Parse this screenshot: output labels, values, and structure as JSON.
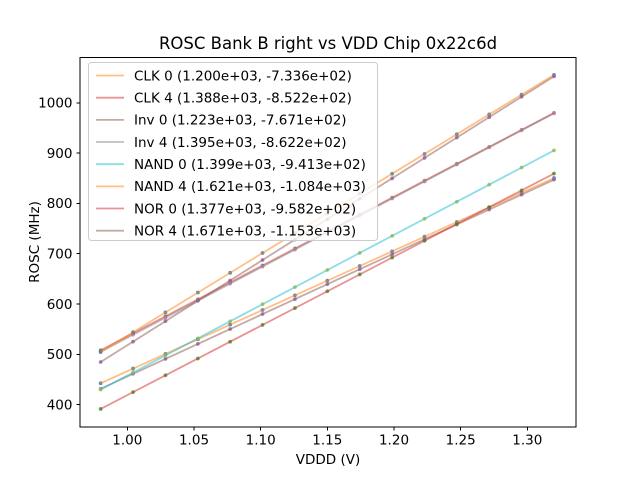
{
  "chart_data": {
    "type": "scatter",
    "fit": "linear (legend shows slope, intercept)",
    "title": "ROSC Bank B right vs VDD Chip 0x22c6d",
    "xlabel": "VDDD (V)",
    "ylabel": "ROSC (MHz)",
    "xlim": [
      0.9645,
      1.3365
    ],
    "ylim": [
      355,
      1090
    ],
    "grid": false,
    "legend_position": "upper left",
    "x_ticks": [
      1.0,
      1.05,
      1.1,
      1.15,
      1.2,
      1.25,
      1.3
    ],
    "x_tick_labels": [
      "1.00",
      "1.05",
      "1.10",
      "1.15",
      "1.20",
      "1.25",
      "1.30"
    ],
    "y_ticks": [
      400,
      500,
      600,
      700,
      800,
      900,
      1000
    ],
    "y_tick_labels": [
      "400",
      "500",
      "600",
      "700",
      "800",
      "900",
      "1000"
    ],
    "x": [
      0.98,
      1.0043,
      1.0286,
      1.0529,
      1.0771,
      1.1014,
      1.1257,
      1.15,
      1.1743,
      1.1986,
      1.2229,
      1.2471,
      1.2714,
      1.2957,
      1.32
    ],
    "series": [
      {
        "name": "CLK 0",
        "legend_label": "CLK 0 (1.200e+03, -7.336e+02)",
        "fit_slope": 1200.0,
        "fit_intercept": -733.6,
        "line_color": "#ff7f0e",
        "marker_color": "#1f77b4",
        "y": [
          442.4,
          471.6,
          500.7,
          529.9,
          559.0,
          588.1,
          617.2,
          646.4,
          675.6,
          704.7,
          733.9,
          762.9,
          792.1,
          821.2,
          850.4
        ]
      },
      {
        "name": "CLK 4",
        "legend_label": "CLK 4 (1.388e+03, -8.522e+02)",
        "fit_slope": 1388.0,
        "fit_intercept": -852.2,
        "line_color": "#d62728",
        "marker_color": "#2ca02c",
        "y": [
          508.0,
          541.8,
          575.5,
          609.2,
          642.8,
          676.5,
          710.3,
          744.0,
          777.7,
          811.5,
          845.2,
          878.8,
          912.5,
          946.2,
          980.0
        ]
      },
      {
        "name": "Inv 0",
        "legend_label": "Inv 0 (1.223e+03, -7.671e+02)",
        "fit_slope": 1223.0,
        "fit_intercept": -767.1,
        "line_color": "#8c564b",
        "marker_color": "#9467bd",
        "y": [
          431.4,
          461.2,
          490.9,
          520.6,
          550.2,
          580.0,
          609.6,
          639.4,
          669.1,
          698.8,
          728.5,
          758.2,
          787.9,
          817.5,
          847.3
        ]
      },
      {
        "name": "Inv 4",
        "legend_label": "Inv 4 (1.395e+03, -8.622e+02)",
        "fit_slope": 1395.0,
        "fit_intercept": -862.2,
        "line_color": "#7f7f7f",
        "marker_color": "#e377c2",
        "y": [
          504.9,
          538.8,
          572.7,
          606.6,
          640.4,
          674.3,
          708.1,
          742.1,
          776.0,
          809.8,
          843.7,
          877.5,
          911.4,
          945.3,
          979.2
        ]
      },
      {
        "name": "NAND 0",
        "legend_label": "NAND 0 (1.399e+03, -9.413e+02)",
        "fit_slope": 1399.0,
        "fit_intercept": -941.3,
        "line_color": "#17becf",
        "marker_color": "#bcbd22",
        "y": [
          429.7,
          463.7,
          497.7,
          531.7,
          565.6,
          599.6,
          633.6,
          667.6,
          701.5,
          735.5,
          769.5,
          803.4,
          837.4,
          871.4,
          905.4
        ]
      },
      {
        "name": "NAND 4",
        "legend_label": "NAND 4 (1.621e+03, -1.084e+03)",
        "fit_slope": 1621.0,
        "fit_intercept": -1084.0,
        "line_color": "#ff7f0e",
        "marker_color": "#1f77b4",
        "y": [
          504.6,
          544.0,
          583.4,
          622.8,
          662.0,
          701.4,
          740.8,
          780.2,
          819.5,
          858.9,
          898.3,
          937.6,
          977.0,
          1016.3,
          1055.7
        ]
      },
      {
        "name": "NOR 0",
        "legend_label": "NOR 0 (1.377e+03, -9.582e+02)",
        "fit_slope": 1377.0,
        "fit_intercept": -958.2,
        "line_color": "#d62728",
        "marker_color": "#2ca02c",
        "y": [
          391.3,
          424.7,
          458.2,
          491.6,
          525.0,
          558.4,
          591.9,
          625.4,
          658.8,
          692.3,
          725.7,
          759.1,
          792.5,
          826.0,
          859.4
        ]
      },
      {
        "name": "NOR 4",
        "legend_label": "NOR 4 (1.671e+03, -1.153e+03)",
        "fit_slope": 1671.0,
        "fit_intercept": -1153.0,
        "line_color": "#8c564b",
        "marker_color": "#9467bd",
        "y": [
          484.6,
          525.2,
          565.8,
          606.4,
          646.8,
          687.4,
          728.0,
          768.7,
          809.3,
          849.9,
          890.5,
          931.0,
          971.5,
          1012.1,
          1052.7
        ]
      }
    ],
    "style": {
      "line_alpha": 0.5,
      "marker_alpha": 0.8,
      "legend_border_color": "#cccccc",
      "axes_color": "#000000"
    }
  }
}
